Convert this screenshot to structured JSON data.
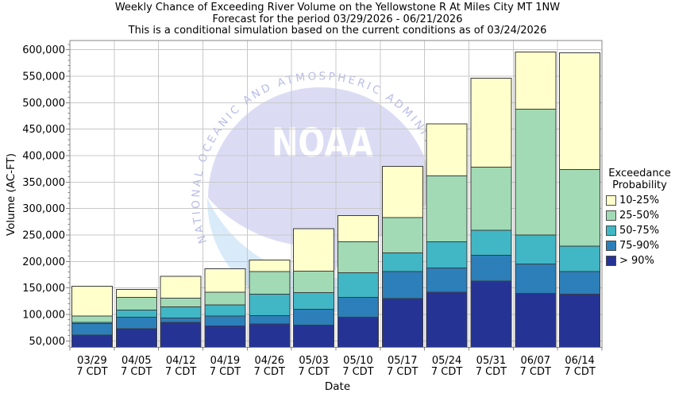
{
  "title": {
    "line1": "Weekly Chance of Exceeding River Volume on the Yellowstone R At Miles City MT 1NW",
    "line2": "Forecast for the period 03/29/2026 - 06/21/2026",
    "line3": "This is a conditional simulation based on the current conditions as of 03/24/2026"
  },
  "axes": {
    "xlabel": "Date",
    "ylabel": "Volume (AC-FT)"
  },
  "legend": {
    "title_line1": "Exceedance",
    "title_line2": "Probability",
    "position": "right",
    "entries": [
      {
        "label": "10-25%",
        "color": "#FFFFCC"
      },
      {
        "label": "25-50%",
        "color": "#A1DAB4"
      },
      {
        "label": "50-75%",
        "color": "#41B6C4"
      },
      {
        "label": "75-90%",
        "color": "#2C7FB8"
      },
      {
        "label": "> 90%",
        "color": "#253494"
      }
    ]
  },
  "watermark": {
    "acronym": "NOAA",
    "caption": "NATIONAL OCEANIC AND ATMOSPHERIC ADMINISTRATION",
    "disc_color": "#dbdcf4",
    "swoosh_color": "#d9ebf9",
    "acronym_color": "#ffffff",
    "caption_color": "#b8bce8"
  },
  "colors": {
    "grid": "#c8c8c8",
    "frame": "#848484",
    "bar_border": "#3c3c3c",
    "text": "#000000"
  },
  "chart_data": {
    "type": "bar",
    "stacked": true,
    "title": "Weekly Chance of Exceeding River Volume on the Yellowstone R At Miles City MT 1NW",
    "subtitle_period": "Forecast for the period 03/29/2026 - 06/21/2026",
    "subtitle_condition": "This is a conditional simulation based on the current conditions as of 03/24/2026",
    "xlabel": "Date",
    "ylabel": "Volume (AC-FT)",
    "grid": true,
    "legend_position": "right",
    "ylim": [
      37700,
      617500
    ],
    "yticks": [
      50000,
      100000,
      150000,
      200000,
      250000,
      300000,
      350000,
      400000,
      450000,
      500000,
      550000,
      600000
    ],
    "x_sublabel": "7 CDT",
    "categories": [
      "03/29",
      "04/05",
      "04/12",
      "04/19",
      "04/26",
      "05/03",
      "05/10",
      "05/17",
      "05/24",
      "05/31",
      "06/07",
      "06/14"
    ],
    "bands": [
      {
        "range": "> 90%",
        "color": "#253494",
        "upper_key": "q90"
      },
      {
        "range": "75-90%",
        "color": "#2C7FB8",
        "upper_key": "q75"
      },
      {
        "range": "50-75%",
        "color": "#41B6C4",
        "upper_key": "q50"
      },
      {
        "range": "25-50%",
        "color": "#A1DAB4",
        "upper_key": "q25"
      },
      {
        "range": "10-25%",
        "color": "#FFFFCC",
        "upper_key": "q10"
      }
    ],
    "bars": [
      {
        "date": "03/29",
        "q90": 61000,
        "q75": 83000,
        "q50": 85000,
        "q25": 97000,
        "q10": 153000
      },
      {
        "date": "04/05",
        "q90": 73000,
        "q75": 95000,
        "q50": 108000,
        "q25": 132000,
        "q10": 147000
      },
      {
        "date": "04/12",
        "q90": 85000,
        "q75": 93000,
        "q50": 114000,
        "q25": 131000,
        "q10": 172000
      },
      {
        "date": "04/19",
        "q90": 78000,
        "q75": 97000,
        "q50": 118000,
        "q25": 142000,
        "q10": 186000
      },
      {
        "date": "04/26",
        "q90": 82000,
        "q75": 98000,
        "q50": 138000,
        "q25": 181000,
        "q10": 203000
      },
      {
        "date": "05/03",
        "q90": 80000,
        "q75": 110000,
        "q50": 141000,
        "q25": 182000,
        "q10": 262000
      },
      {
        "date": "05/10",
        "q90": 95000,
        "q75": 132000,
        "q50": 179000,
        "q25": 237000,
        "q10": 287000
      },
      {
        "date": "05/17",
        "q90": 130000,
        "q75": 181000,
        "q50": 216000,
        "q25": 283000,
        "q10": 380000
      },
      {
        "date": "05/24",
        "q90": 142000,
        "q75": 188000,
        "q50": 237000,
        "q25": 362000,
        "q10": 460000
      },
      {
        "date": "05/31",
        "q90": 163000,
        "q75": 212000,
        "q50": 259000,
        "q25": 378000,
        "q10": 546000
      },
      {
        "date": "06/07",
        "q90": 140000,
        "q75": 195000,
        "q50": 250000,
        "q25": 488000,
        "q10": 596000
      },
      {
        "date": "06/14",
        "q90": 138000,
        "q75": 181000,
        "q50": 229000,
        "q25": 374000,
        "q10": 594000
      }
    ]
  }
}
